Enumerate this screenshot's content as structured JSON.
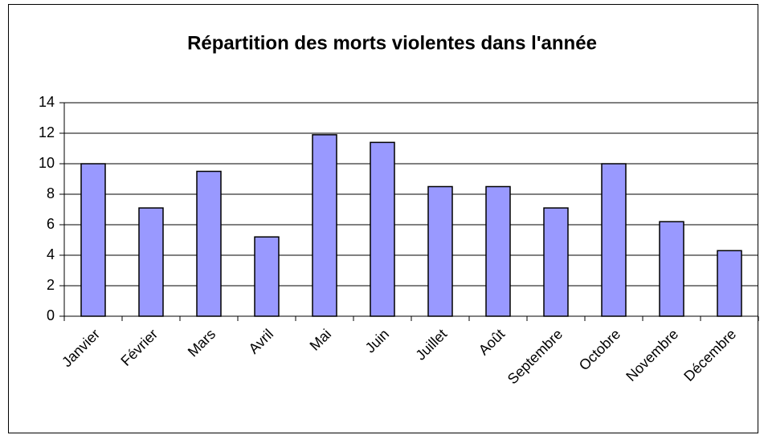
{
  "chart_data": {
    "type": "bar",
    "title": "Répartition des morts violentes dans l'année",
    "categories": [
      "Janvier",
      "Février",
      "Mars",
      "Avril",
      "Mai",
      "Juin",
      "Juillet",
      "Août",
      "Septembre",
      "Octobre",
      "Novembre",
      "Décembre"
    ],
    "values": [
      10,
      7.1,
      9.5,
      5.2,
      11.9,
      11.4,
      8.5,
      8.5,
      7.1,
      10,
      6.2,
      4.3
    ],
    "color": "#9999ff",
    "ylim": [
      0,
      14
    ],
    "yticks": [
      0,
      2,
      4,
      6,
      8,
      10,
      12,
      14
    ],
    "grid": true
  }
}
